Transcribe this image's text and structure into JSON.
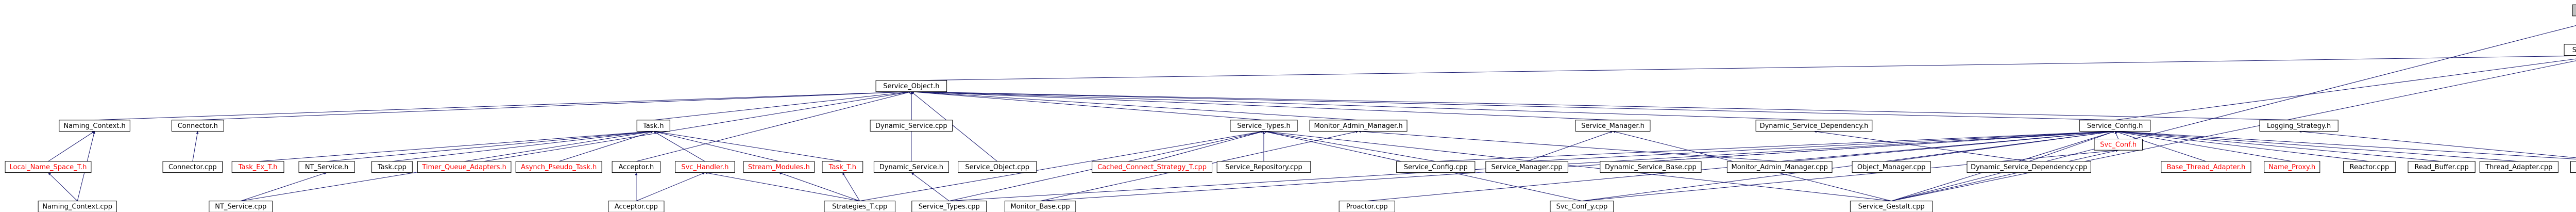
{
  "nodes": [
    {
      "label": "Service_Gestalt.inl",
      "fill": "#bfbfbf"
    },
    {
      "label": "Service_Gestalt.h"
    },
    {
      "label": "Service_Object.h"
    },
    {
      "label": "Naming_Context.h"
    },
    {
      "label": "Connector.h"
    },
    {
      "label": "Task.h"
    },
    {
      "label": "Dynamic_Service.cpp"
    },
    {
      "label": "Service_Types.h"
    },
    {
      "label": "Monitor_Admin_Manager.h"
    },
    {
      "label": "Service_Manager.h"
    },
    {
      "label": "Dynamic_Service_Dependency.h"
    },
    {
      "label": "Service_Config.h"
    },
    {
      "label": "Logging_Strategy.h"
    },
    {
      "label": "Local_Name_Space_T.h",
      "color": "#ff0000"
    },
    {
      "label": "Connector.cpp"
    },
    {
      "label": "Task_Ex_T.h",
      "color": "#ff0000"
    },
    {
      "label": "NT_Service.h"
    },
    {
      "label": "Task.cpp"
    },
    {
      "label": "Timer_Queue_Adapters.h",
      "color": "#ff0000"
    },
    {
      "label": "Asynch_Pseudo_Task.h",
      "color": "#ff0000"
    },
    {
      "label": "Acceptor.h"
    },
    {
      "label": "Svc_Handler.h",
      "color": "#ff0000"
    },
    {
      "label": "Stream_Modules.h",
      "color": "#ff0000"
    },
    {
      "label": "Task_T.h",
      "color": "#ff0000"
    },
    {
      "label": "Dynamic_Service.h"
    },
    {
      "label": "Service_Object.cpp"
    },
    {
      "label": "Cached_Connect_Strategy_T.cpp",
      "color": "#ff0000"
    },
    {
      "label": "Service_Repository.cpp"
    },
    {
      "label": "Service_Config.cpp"
    },
    {
      "label": "Service_Manager.cpp"
    },
    {
      "label": "Dynamic_Service_Base.cpp"
    },
    {
      "label": "Monitor_Admin_Manager.cpp"
    },
    {
      "label": "Object_Manager.cpp"
    },
    {
      "label": "Dynamic_Service_Dependency.cpp"
    },
    {
      "label": "Svc_Conf.h",
      "color": "#ff0000"
    },
    {
      "label": "Base_Thread_Adapter.h",
      "color": "#ff0000"
    },
    {
      "label": "Name_Proxy.h",
      "color": "#ff0000"
    },
    {
      "label": "Reactor.cpp"
    },
    {
      "label": "Read_Buffer.cpp"
    },
    {
      "label": "Thread_Adapter.cpp"
    },
    {
      "label": "Logging_Strategy.cpp"
    },
    {
      "label": "Naming_Context.cpp"
    },
    {
      "label": "NT_Service.cpp"
    },
    {
      "label": "Acceptor.cpp"
    },
    {
      "label": "Strategies_T.cpp"
    },
    {
      "label": "Service_Types.cpp"
    },
    {
      "label": "Monitor_Base.cpp"
    },
    {
      "label": "Proactor.cpp"
    },
    {
      "label": "Svc_Conf_y.cpp"
    },
    {
      "label": "Service_Gestalt.cpp"
    }
  ]
}
